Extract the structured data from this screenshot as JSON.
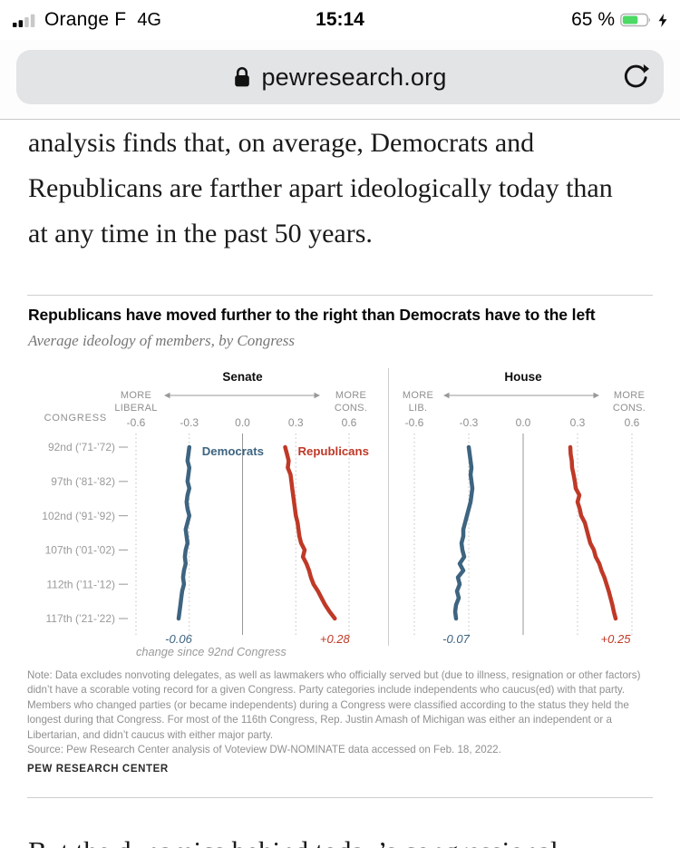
{
  "status_bar": {
    "carrier": "Orange F",
    "network": "4G",
    "time": "15:14",
    "battery_percent": "65 %",
    "battery_level": 0.65,
    "battery_color": "#4cd964",
    "signal_icon": "cellular-signal-2-of-4-bars",
    "charging_icon": "lightning-bolt"
  },
  "address_bar": {
    "lock_icon": "padlock",
    "url": "pewresearch.org",
    "reload_icon": "reload-circular-arrow"
  },
  "article": {
    "paragraph": "analysis finds that, on average, Democrats and Republicans are farther apart ideologically today than at any time in the past 50 years.",
    "next_paragraph_partial": "But the dynamics behind today’s congressional"
  },
  "chart_card": {
    "title": "Republicans have moved further to the right than Democrats have to the left",
    "subtitle": "Average ideology of members, by Congress",
    "note": "Note: Data excludes nonvoting delegates, as well as lawmakers who officially served but (due to illness, resignation or other factors) didn’t have a scorable voting record for a given Congress. Party categories include independents who caucus(ed) with that party. Members who changed parties (or became independents) during a Congress were classified according to the status they held the longest during that Congress. For most of the 116th Congress, Rep. Justin Amash of Michigan was either an independent or a Libertarian, and didn’t caucus with either major party.",
    "source": "Source: Pew Research Center analysis of Voteview DW-NOMINATE data accessed on Feb. 18, 2022.",
    "brand": "PEW RESEARCH CENTER"
  },
  "chart_data": {
    "type": "line",
    "orientation": "value-horizontal-time-vertical",
    "title": "Republicans have moved further to the right than Democrats have to the left",
    "subtitle": "Average ideology of members, by Congress",
    "x_range": [
      -0.6,
      0.6
    ],
    "x_ticks": [
      "-0.6",
      "-0.3",
      "0.0",
      "0.3",
      "0.6"
    ],
    "x_tick_values": [
      -0.6,
      -0.3,
      0,
      0.3,
      0.6
    ],
    "y_axis_title": "CONGRESS",
    "congress_start": 92,
    "congress_end": 117,
    "y_tick_labels": [
      "92nd (’71-’72)",
      "97th (’81-’82)",
      "102nd (’91-’92)",
      "107th (’01-’02)",
      "112th (’11-’12)",
      "117th (’21-’22)"
    ],
    "y_tick_congresses": [
      92,
      97,
      102,
      107,
      112,
      117
    ],
    "footnote": "change since 92nd Congress",
    "grid": "dotted-verticals-with-solid-zero-line",
    "colors": {
      "democrats": "#3d6480",
      "republicans": "#bf3927",
      "grid": "#c2c2c2",
      "zero_line": "#979797",
      "axis_text": "#8f8f8f",
      "row_text": "#9a9a9a"
    },
    "panels": [
      {
        "title": "Senate",
        "left_label": [
          "MORE",
          "LIBERAL"
        ],
        "right_label": [
          "MORE",
          "CONS."
        ],
        "series": [
          {
            "name": "Democrats",
            "key": "democrats",
            "show_name": true,
            "change_label": "-0.06",
            "values": [
              -0.3,
              -0.305,
              -0.31,
              -0.3,
              -0.305,
              -0.31,
              -0.3,
              -0.31,
              -0.315,
              -0.31,
              -0.3,
              -0.31,
              -0.32,
              -0.315,
              -0.31,
              -0.32,
              -0.325,
              -0.32,
              -0.33,
              -0.335,
              -0.33,
              -0.34,
              -0.345,
              -0.35,
              -0.355,
              -0.36
            ]
          },
          {
            "name": "Republicans",
            "key": "republicans",
            "show_name": true,
            "change_label": "+0.28",
            "values": [
              0.24,
              0.25,
              0.26,
              0.255,
              0.27,
              0.275,
              0.28,
              0.285,
              0.29,
              0.295,
              0.3,
              0.31,
              0.315,
              0.32,
              0.33,
              0.35,
              0.34,
              0.36,
              0.375,
              0.385,
              0.4,
              0.425,
              0.445,
              0.465,
              0.49,
              0.52
            ]
          }
        ]
      },
      {
        "title": "House",
        "left_label": [
          "MORE",
          "LIB."
        ],
        "right_label": [
          "MORE",
          "CONS."
        ],
        "series": [
          {
            "name": "Democrats",
            "key": "democrats",
            "show_name": false,
            "change_label": "-0.07",
            "values": [
              -0.3,
              -0.295,
              -0.29,
              -0.285,
              -0.29,
              -0.285,
              -0.28,
              -0.285,
              -0.29,
              -0.3,
              -0.31,
              -0.32,
              -0.33,
              -0.33,
              -0.34,
              -0.335,
              -0.325,
              -0.35,
              -0.33,
              -0.36,
              -0.35,
              -0.365,
              -0.355,
              -0.37,
              -0.375,
              -0.37
            ]
          },
          {
            "name": "Republicans",
            "key": "republicans",
            "show_name": false,
            "change_label": "+0.25",
            "values": [
              0.26,
              0.262,
              0.268,
              0.27,
              0.278,
              0.285,
              0.29,
              0.31,
              0.3,
              0.312,
              0.32,
              0.34,
              0.35,
              0.36,
              0.37,
              0.39,
              0.4,
              0.42,
              0.432,
              0.448,
              0.46,
              0.472,
              0.482,
              0.492,
              0.5,
              0.51
            ]
          }
        ]
      }
    ]
  }
}
